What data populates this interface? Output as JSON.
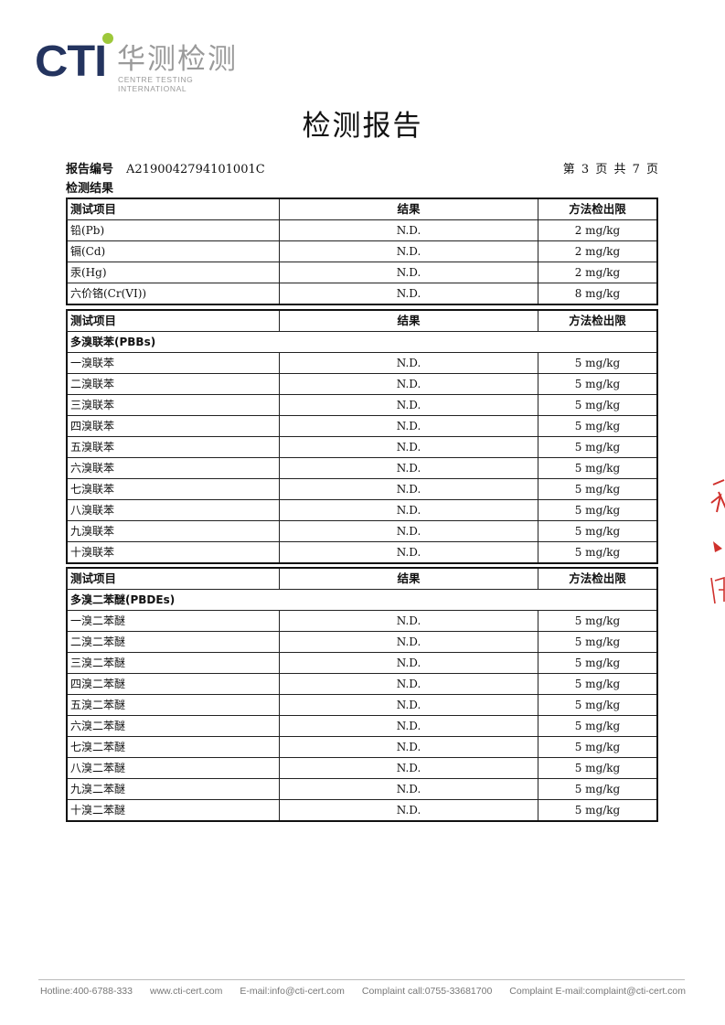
{
  "logo": {
    "brand": "CTI",
    "chinese": "华测检测",
    "english": "CENTRE TESTING INTERNATIONAL",
    "dot_color": "#9dc83a",
    "brand_color": "#24345f"
  },
  "title": "检测报告",
  "report_no_label": "报告编号",
  "report_no": "A2190042794101001C",
  "page_info": "第 3 页  共 7 页",
  "section_title": "检测结果",
  "headers": {
    "item": "测试项目",
    "result": "结果",
    "mdl": "方法检出限"
  },
  "tables": [
    {
      "subtitle": "",
      "rows": [
        {
          "item": "铅(Pb)",
          "result": "N.D.",
          "mdl": "2 mg/kg"
        },
        {
          "item": "镉(Cd)",
          "result": "N.D.",
          "mdl": "2 mg/kg"
        },
        {
          "item": "汞(Hg)",
          "result": "N.D.",
          "mdl": "2 mg/kg"
        },
        {
          "item": "六价铬(Cr(VI))",
          "result": "N.D.",
          "mdl": "8 mg/kg"
        }
      ]
    },
    {
      "subtitle": "多溴联苯(PBBs)",
      "rows": [
        {
          "item": "一溴联苯",
          "result": "N.D.",
          "mdl": "5 mg/kg"
        },
        {
          "item": "二溴联苯",
          "result": "N.D.",
          "mdl": "5 mg/kg"
        },
        {
          "item": "三溴联苯",
          "result": "N.D.",
          "mdl": "5 mg/kg"
        },
        {
          "item": "四溴联苯",
          "result": "N.D.",
          "mdl": "5 mg/kg"
        },
        {
          "item": "五溴联苯",
          "result": "N.D.",
          "mdl": "5 mg/kg"
        },
        {
          "item": "六溴联苯",
          "result": "N.D.",
          "mdl": "5 mg/kg"
        },
        {
          "item": "七溴联苯",
          "result": "N.D.",
          "mdl": "5 mg/kg"
        },
        {
          "item": "八溴联苯",
          "result": "N.D.",
          "mdl": "5 mg/kg"
        },
        {
          "item": "九溴联苯",
          "result": "N.D.",
          "mdl": "5 mg/kg"
        },
        {
          "item": "十溴联苯",
          "result": "N.D.",
          "mdl": "5 mg/kg"
        }
      ]
    },
    {
      "subtitle": "多溴二苯醚(PBDEs)",
      "rows": [
        {
          "item": "一溴二苯醚",
          "result": "N.D.",
          "mdl": "5 mg/kg"
        },
        {
          "item": "二溴二苯醚",
          "result": "N.D.",
          "mdl": "5 mg/kg"
        },
        {
          "item": "三溴二苯醚",
          "result": "N.D.",
          "mdl": "5 mg/kg"
        },
        {
          "item": "四溴二苯醚",
          "result": "N.D.",
          "mdl": "5 mg/kg"
        },
        {
          "item": "五溴二苯醚",
          "result": "N.D.",
          "mdl": "5 mg/kg"
        },
        {
          "item": "六溴二苯醚",
          "result": "N.D.",
          "mdl": "5 mg/kg"
        },
        {
          "item": "七溴二苯醚",
          "result": "N.D.",
          "mdl": "5 mg/kg"
        },
        {
          "item": "八溴二苯醚",
          "result": "N.D.",
          "mdl": "5 mg/kg"
        },
        {
          "item": "九溴二苯醚",
          "result": "N.D.",
          "mdl": "5 mg/kg"
        },
        {
          "item": "十溴二苯醚",
          "result": "N.D.",
          "mdl": "5 mg/kg"
        }
      ]
    }
  ],
  "footer": [
    "Hotline:400-6788-333",
    "www.cti-cert.com",
    "E-mail:info@cti-cert.com",
    "Complaint call:0755-33681700",
    "Complaint E-mail:complaint@cti-cert.com"
  ],
  "stamp_color": "#d0312d"
}
